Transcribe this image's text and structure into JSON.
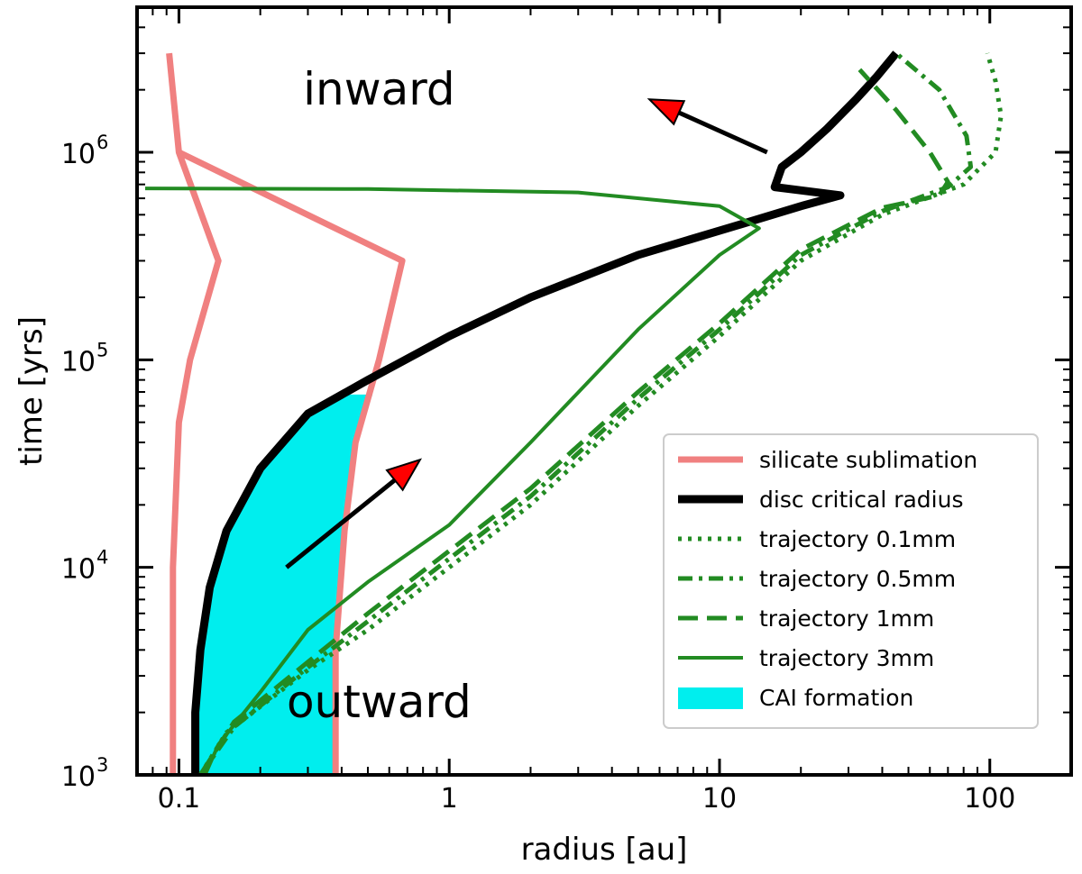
{
  "chart_data": {
    "type": "line",
    "xscale": "log",
    "yscale": "log",
    "xlim": [
      0.07,
      200
    ],
    "ylim": [
      1000,
      5000000
    ],
    "xlabel": "radius [au]",
    "ylabel": "time [yrs]",
    "x_ticks": [
      {
        "value": 0.1,
        "label": "0.1"
      },
      {
        "value": 1,
        "label": "1"
      },
      {
        "value": 10,
        "label": "10"
      },
      {
        "value": 100,
        "label": "100"
      }
    ],
    "y_ticks": [
      {
        "value": 1000,
        "base": "10",
        "exp": "3"
      },
      {
        "value": 10000,
        "base": "10",
        "exp": "4"
      },
      {
        "value": 100000,
        "base": "10",
        "exp": "5"
      },
      {
        "value": 1000000,
        "base": "10",
        "exp": "6"
      }
    ],
    "annotations": [
      {
        "name": "annotation-inward",
        "text": "inward",
        "x": 0.55,
        "y": 1700000
      },
      {
        "name": "annotation-outward",
        "text": "outward",
        "x": 0.55,
        "y": 1900
      }
    ],
    "arrows": [
      {
        "name": "arrow-outward",
        "from": [
          0.25,
          10000
        ],
        "to": [
          0.78,
          33000
        ]
      },
      {
        "name": "arrow-inward",
        "from": [
          15,
          1000000
        ],
        "to": [
          5.5,
          1800000
        ]
      }
    ],
    "colors": {
      "silicate": "#f08080",
      "critical": "#000000",
      "trajectory": "#228b22",
      "cai": "#00eeee",
      "arrow_head": "#ff0000"
    },
    "series": [
      {
        "name": "silicate sublimation",
        "id": "silicate-inner",
        "color": "#f08080",
        "width": 7,
        "dash": "",
        "points": [
          [
            0.095,
            1000
          ],
          [
            0.095,
            10000
          ],
          [
            0.1,
            50000
          ],
          [
            0.11,
            100000
          ],
          [
            0.14,
            300000
          ],
          [
            0.1,
            1000000
          ],
          [
            0.092,
            3000000
          ]
        ]
      },
      {
        "name": "silicate sublimation",
        "id": "silicate-outer",
        "color": "#f08080",
        "width": 7,
        "dash": "",
        "points": [
          [
            0.38,
            1000
          ],
          [
            0.38,
            4000
          ],
          [
            0.41,
            15000
          ],
          [
            0.45,
            40000
          ],
          [
            0.55,
            100000
          ],
          [
            0.67,
            300000
          ],
          [
            0.1,
            1000000
          ]
        ]
      },
      {
        "name": "disc critical radius",
        "id": "disc-critical-radius",
        "color": "#000000",
        "width": 9,
        "dash": "",
        "points": [
          [
            0.115,
            1000
          ],
          [
            0.115,
            2000
          ],
          [
            0.12,
            4000
          ],
          [
            0.13,
            8000
          ],
          [
            0.15,
            15000
          ],
          [
            0.2,
            30000
          ],
          [
            0.3,
            55000
          ],
          [
            0.5,
            80000
          ],
          [
            1.0,
            130000
          ],
          [
            2.0,
            200000
          ],
          [
            5.0,
            320000
          ],
          [
            12,
            450000
          ],
          [
            20,
            550000
          ],
          [
            28,
            620000
          ],
          [
            16,
            680000
          ],
          [
            17,
            850000
          ],
          [
            20,
            1000000
          ],
          [
            25,
            1300000
          ],
          [
            32,
            1800000
          ],
          [
            38,
            2300000
          ],
          [
            45,
            3000000
          ]
        ]
      },
      {
        "name": "trajectory 0.1mm",
        "id": "trajectory-0-1mm",
        "color": "#228b22",
        "width": 5,
        "dash": "4 7",
        "points": [
          [
            0.12,
            1000
          ],
          [
            0.15,
            1600
          ],
          [
            0.3,
            3200
          ],
          [
            0.5,
            5000
          ],
          [
            1,
            10000
          ],
          [
            2,
            20000
          ],
          [
            5,
            60000
          ],
          [
            10,
            130000
          ],
          [
            20,
            300000
          ],
          [
            40,
            500000
          ],
          [
            80,
            700000
          ],
          [
            105,
            1000000
          ],
          [
            110,
            1500000
          ],
          [
            105,
            2200000
          ],
          [
            98,
            3000000
          ]
        ]
      },
      {
        "name": "trajectory 0.5mm",
        "id": "trajectory-0-5mm",
        "color": "#228b22",
        "width": 5,
        "dash": "16 7 4 7",
        "points": [
          [
            0.12,
            1000
          ],
          [
            0.16,
            1700
          ],
          [
            0.3,
            3300
          ],
          [
            0.5,
            5500
          ],
          [
            1,
            11000
          ],
          [
            2,
            22000
          ],
          [
            5,
            65000
          ],
          [
            10,
            140000
          ],
          [
            20,
            320000
          ],
          [
            40,
            520000
          ],
          [
            70,
            680000
          ],
          [
            85,
            850000
          ],
          [
            82,
            1200000
          ],
          [
            65,
            2000000
          ],
          [
            45,
            3000000
          ]
        ]
      },
      {
        "name": "trajectory 1mm",
        "id": "trajectory-1mm",
        "color": "#228b22",
        "width": 5,
        "dash": "22 10",
        "points": [
          [
            0.12,
            1000
          ],
          [
            0.16,
            1800
          ],
          [
            0.3,
            3500
          ],
          [
            0.5,
            6000
          ],
          [
            1,
            12000
          ],
          [
            2,
            24000
          ],
          [
            5,
            70000
          ],
          [
            10,
            150000
          ],
          [
            20,
            340000
          ],
          [
            40,
            540000
          ],
          [
            65,
            620000
          ],
          [
            70,
            720000
          ],
          [
            60,
            1000000
          ],
          [
            45,
            1600000
          ],
          [
            33,
            2500000
          ]
        ]
      },
      {
        "name": "trajectory 3mm",
        "id": "trajectory-3mm",
        "color": "#228b22",
        "width": 4,
        "dash": "",
        "points": [
          [
            0.125,
            1000
          ],
          [
            0.14,
            1400
          ],
          [
            0.2,
            2500
          ],
          [
            0.3,
            5000
          ],
          [
            0.5,
            8500
          ],
          [
            1,
            16000
          ],
          [
            2,
            40000
          ],
          [
            5,
            140000
          ],
          [
            10,
            320000
          ],
          [
            14,
            430000
          ],
          [
            10,
            550000
          ],
          [
            3,
            640000
          ],
          [
            0.5,
            665000
          ],
          [
            0.075,
            670000
          ]
        ]
      }
    ],
    "cai_region": {
      "name": "CAI formation",
      "color": "#00eeee",
      "left_boundary": [
        [
          0.115,
          1000
        ],
        [
          0.115,
          2000
        ],
        [
          0.12,
          4000
        ],
        [
          0.13,
          8000
        ],
        [
          0.15,
          15000
        ],
        [
          0.2,
          30000
        ],
        [
          0.3,
          55000
        ],
        [
          0.42,
          68000
        ]
      ],
      "right_boundary": [
        [
          0.38,
          1000
        ],
        [
          0.38,
          4000
        ],
        [
          0.41,
          15000
        ],
        [
          0.45,
          40000
        ],
        [
          0.52,
          68000
        ]
      ]
    },
    "legend": {
      "position": "lower-right",
      "entries": [
        {
          "label": "silicate sublimation",
          "color": "#f08080",
          "dash": "",
          "width": 7,
          "kind": "line"
        },
        {
          "label": "disc critical radius",
          "color": "#000000",
          "dash": "",
          "width": 9,
          "kind": "line"
        },
        {
          "label": "trajectory 0.1mm",
          "color": "#228b22",
          "dash": "4 7",
          "width": 5,
          "kind": "line"
        },
        {
          "label": "trajectory 0.5mm",
          "color": "#228b22",
          "dash": "16 7 4 7",
          "width": 5,
          "kind": "line"
        },
        {
          "label": "trajectory 1mm",
          "color": "#228b22",
          "dash": "22 10",
          "width": 5,
          "kind": "line"
        },
        {
          "label": "trajectory 3mm",
          "color": "#228b22",
          "dash": "",
          "width": 4,
          "kind": "line"
        },
        {
          "label": "CAI formation",
          "color": "#00eeee",
          "dash": "",
          "width": 0,
          "kind": "patch"
        }
      ]
    }
  }
}
